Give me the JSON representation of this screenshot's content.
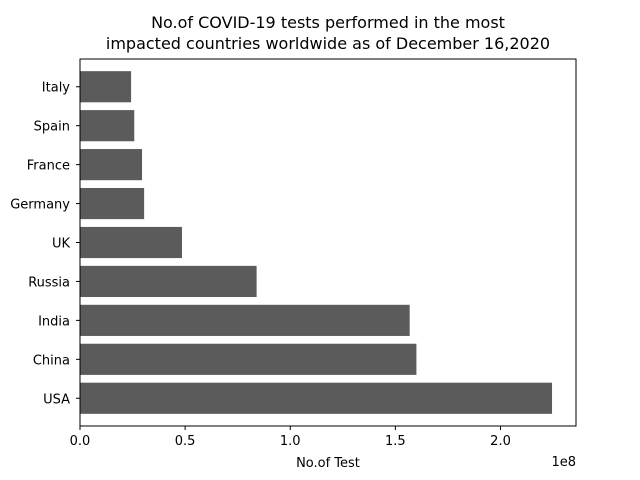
{
  "chart_data": {
    "type": "bar",
    "orientation": "horizontal",
    "title_lines": [
      "No.of COVID-19 tests performed in the most",
      "impacted countries worldwide as of December 16,2020"
    ],
    "xlabel": "No.of Test",
    "ylabel": "",
    "x_offset_label": "1e8",
    "categories": [
      "USA",
      "China",
      "India",
      "Russia",
      "UK",
      "Germany",
      "France",
      "Spain",
      "Italy"
    ],
    "values": [
      224500000,
      160000000,
      156800000,
      84000000,
      48500000,
      30500000,
      29500000,
      25800000,
      24300000
    ],
    "xlim": [
      0,
      235900000
    ],
    "x_ticks": [
      {
        "value": 0,
        "label": "0.0"
      },
      {
        "value": 50000000,
        "label": "0.5"
      },
      {
        "value": 100000000,
        "label": "1.0"
      },
      {
        "value": 150000000,
        "label": "1.5"
      },
      {
        "value": 200000000,
        "label": "2.0"
      }
    ],
    "bar_color": "#5b5b5b",
    "grid": false,
    "legend": "none"
  }
}
